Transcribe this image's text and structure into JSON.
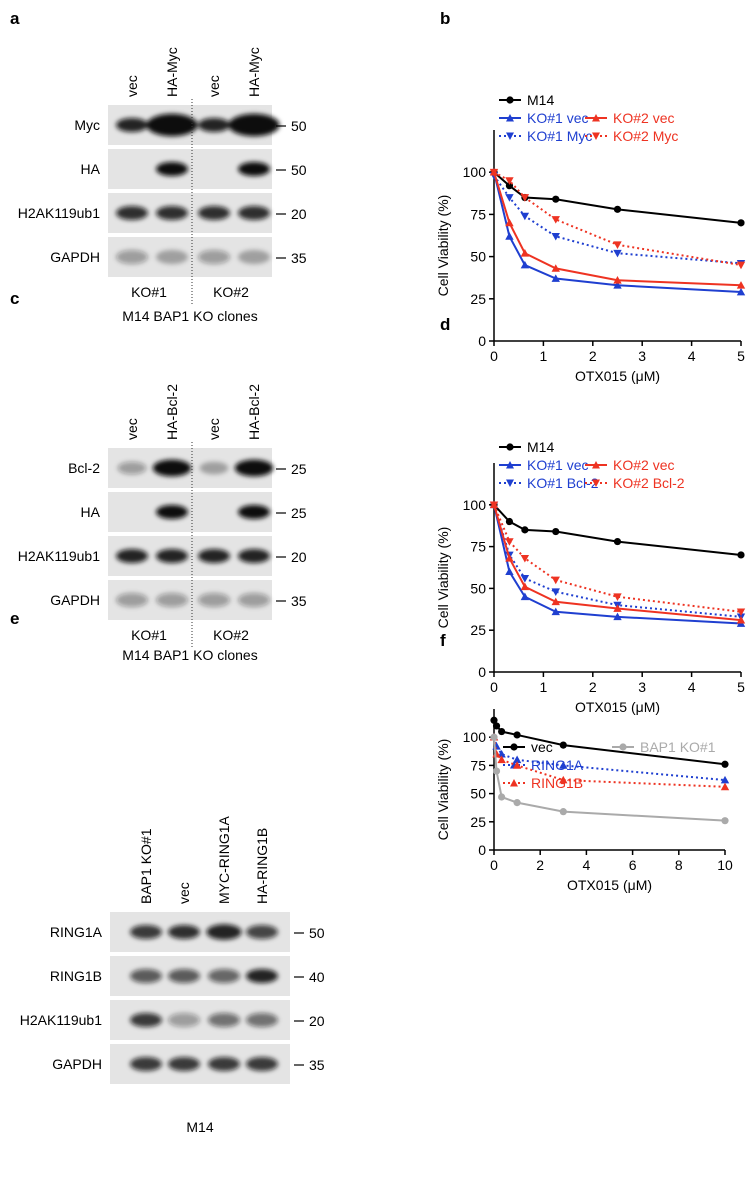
{
  "blots": [
    {
      "panel": "a",
      "lanes": [
        "vec",
        "HA-Myc",
        "vec",
        "HA-Myc"
      ],
      "rows": [
        {
          "label": "Myc",
          "mw": 50
        },
        {
          "label": "HA",
          "mw": 50
        },
        {
          "label": "H2AK119ub1",
          "mw": 20
        },
        {
          "label": "GAPDH",
          "mw": 35
        }
      ],
      "groups": [
        "KO#1",
        "KO#2"
      ],
      "caption": "M14 BAP1 KO clones"
    },
    {
      "panel": "c",
      "lanes": [
        "vec",
        "HA-Bcl-2",
        "vec",
        "HA-Bcl-2"
      ],
      "rows": [
        {
          "label": "Bcl-2",
          "mw": 25
        },
        {
          "label": "HA",
          "mw": 25
        },
        {
          "label": "H2AK119ub1",
          "mw": 20
        },
        {
          "label": "GAPDH",
          "mw": 35
        }
      ],
      "groups": [
        "KO#1",
        "KO#2"
      ],
      "caption": "M14 BAP1 KO clones"
    },
    {
      "panel": "e",
      "lanes": [
        "BAP1 KO#1",
        "vec",
        "MYC-RING1A",
        "HA-RING1B"
      ],
      "rows": [
        {
          "label": "RING1A",
          "mw": 50
        },
        {
          "label": "RING1B",
          "mw": 40
        },
        {
          "label": "H2AK119ub1",
          "mw": 20
        },
        {
          "label": "GAPDH",
          "mw": 35
        }
      ],
      "caption": "M14"
    }
  ],
  "chart_data": [
    {
      "type": "line",
      "panel": "b",
      "x_label": "OTX015 (μM)",
      "y_label": "Cell Viability (%)",
      "x": [
        0,
        0.3125,
        0.625,
        1.25,
        2.5,
        5
      ],
      "xlim": [
        0,
        5
      ],
      "xticks": [
        0,
        1,
        2,
        3,
        4,
        5
      ],
      "ylim": [
        0,
        125
      ],
      "yticks": [
        0,
        25,
        50,
        75,
        100
      ],
      "series": [
        {
          "name": "M14",
          "color": "#000000",
          "marker": "circle",
          "dashed": false,
          "values": [
            100,
            92,
            85,
            84,
            78,
            70
          ]
        },
        {
          "name": "KO#1 vec",
          "color": "#1f3fd0",
          "marker": "triangle",
          "dashed": false,
          "values": [
            100,
            62,
            45,
            37,
            33,
            29
          ]
        },
        {
          "name": "KO#1 Myc",
          "color": "#1f3fd0",
          "marker": "triangle-down",
          "dashed": true,
          "values": [
            98,
            85,
            74,
            62,
            52,
            46
          ]
        },
        {
          "name": "KO#2 vec",
          "color": "#ee3322",
          "marker": "triangle",
          "dashed": false,
          "values": [
            100,
            70,
            52,
            43,
            36,
            33
          ]
        },
        {
          "name": "KO#2 Myc",
          "color": "#ee3322",
          "marker": "triangle-down",
          "dashed": true,
          "values": [
            100,
            95,
            85,
            72,
            57,
            45
          ]
        }
      ]
    },
    {
      "type": "line",
      "panel": "d",
      "x_label": "OTX015 (μM)",
      "y_label": "Cell Viability (%)",
      "x": [
        0,
        0.3125,
        0.625,
        1.25,
        2.5,
        5
      ],
      "xlim": [
        0,
        5
      ],
      "xticks": [
        0,
        1,
        2,
        3,
        4,
        5
      ],
      "ylim": [
        0,
        125
      ],
      "yticks": [
        0,
        25,
        50,
        75,
        100
      ],
      "series": [
        {
          "name": "M14",
          "color": "#000000",
          "marker": "circle",
          "dashed": false,
          "values": [
            100,
            90,
            85,
            84,
            78,
            70
          ]
        },
        {
          "name": "KO#1 vec",
          "color": "#1f3fd0",
          "marker": "triangle",
          "dashed": false,
          "values": [
            100,
            60,
            45,
            36,
            33,
            29
          ]
        },
        {
          "name": "KO#1 Bcl-2",
          "color": "#1f3fd0",
          "marker": "triangle-down",
          "dashed": true,
          "values": [
            100,
            70,
            56,
            48,
            40,
            33
          ]
        },
        {
          "name": "KO#2 vec",
          "color": "#ee3322",
          "marker": "triangle",
          "dashed": false,
          "values": [
            100,
            68,
            51,
            42,
            38,
            31
          ]
        },
        {
          "name": "KO#2 Bcl-2",
          "color": "#ee3322",
          "marker": "triangle-down",
          "dashed": true,
          "values": [
            100,
            78,
            68,
            55,
            45,
            36
          ]
        }
      ]
    },
    {
      "type": "line",
      "panel": "f",
      "x_label": "OTX015 (μM)",
      "y_label": "Cell Viability (%)",
      "x": [
        0,
        0.11,
        0.33,
        1,
        3,
        10
      ],
      "xlim": [
        0,
        10
      ],
      "xticks": [
        0,
        2,
        4,
        6,
        8,
        10
      ],
      "ylim": [
        0,
        125
      ],
      "yticks": [
        0,
        25,
        50,
        75,
        100
      ],
      "series": [
        {
          "name": "vec",
          "color": "#000000",
          "marker": "circle",
          "dashed": false,
          "values": [
            115,
            110,
            105,
            102,
            93,
            76
          ]
        },
        {
          "name": "RING1A",
          "color": "#1f3fd0",
          "marker": "triangle",
          "dashed": true,
          "values": [
            100,
            92,
            85,
            80,
            75,
            62
          ]
        },
        {
          "name": "RING1B",
          "color": "#ee3322",
          "marker": "triangle",
          "dashed": true,
          "values": [
            100,
            85,
            80,
            75,
            62,
            56
          ]
        },
        {
          "name": "BAP1 KO#1",
          "color": "#aaaaaa",
          "marker": "circle",
          "dashed": false,
          "values": [
            100,
            70,
            47,
            42,
            34,
            26
          ]
        }
      ]
    }
  ]
}
